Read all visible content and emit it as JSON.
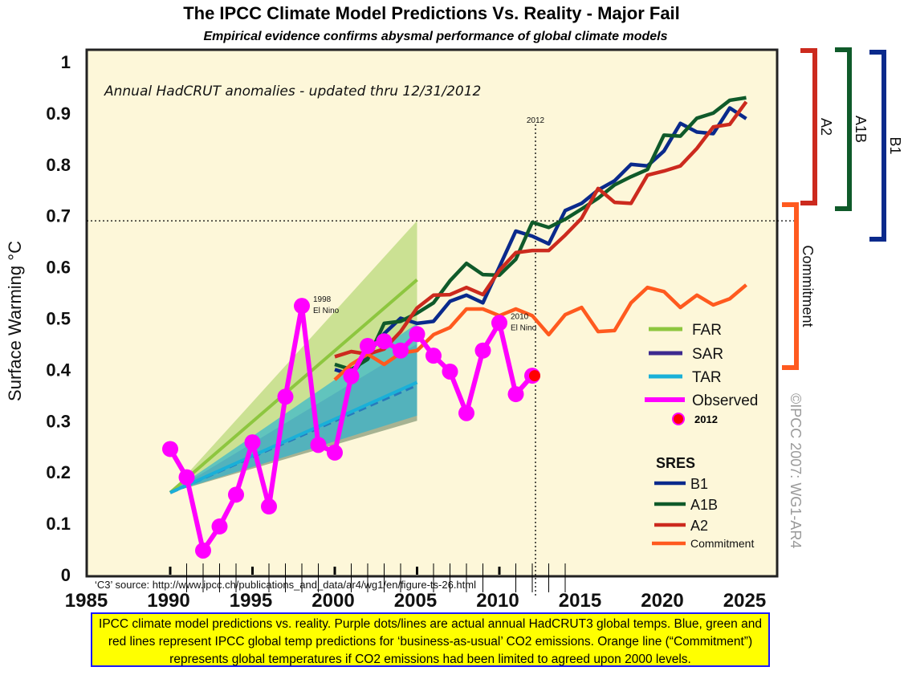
{
  "title": "The IPCC Climate Model Predictions Vs. Reality - Major Fail",
  "subtitle": "Empirical evidence confirms abysmal performance of global climate models",
  "caption": "IPCC climate model predictions vs. reality. Purple dots/lines are actual annual HadCRUT3 global temps. Blue, green and red lines represent IPCC global temp predictions for ‘business-as-usual’ CO2 emissions. Orange line (“Commitment”) represents global temperatures if CO2 emissions had been limited to agreed upon 2000 levels.",
  "chart_data": {
    "type": "line",
    "ylabel": "Surface Warming °C",
    "xlabel": "",
    "xlim": [
      1985,
      2025
    ],
    "ylim": [
      0,
      1
    ],
    "x_ticks": [
      1985,
      1990,
      1995,
      2000,
      2005,
      2010,
      2015,
      2020,
      2025
    ],
    "y_ticks": [
      0,
      0.1,
      0.2,
      0.3,
      0.4,
      0.5,
      0.6,
      0.7,
      0.8,
      0.9,
      1
    ],
    "annotation_header": "Annual HadCRUT anomalies - updated thru 12/31/2012",
    "source_note": "‘C3’ source: http://www.ipcc.ch/publications_and_data/ar4/wg1/en/figure-ts-26.html",
    "reference_lines": {
      "x": 2012,
      "x_label": "2012",
      "y": 0.69
    },
    "annotations": [
      {
        "x": 1998,
        "y": 0.524,
        "text": [
          "1998",
          "El Nino"
        ]
      },
      {
        "x": 2010,
        "y": 0.491,
        "text": [
          "2010",
          "El Nino"
        ]
      }
    ],
    "copyright": "©IPCC 2007: WG1-AR4",
    "bands": [
      {
        "name": "FAR",
        "color": "#8dc63f",
        "x": [
          1990,
          2005
        ],
        "lower": [
          0.16,
          0.3
        ],
        "upper": [
          0.16,
          0.69
        ],
        "center": [
          0.16,
          0.575
        ]
      },
      {
        "name": "SAR",
        "color": "#3d2a8f",
        "x": [
          1990,
          2005
        ],
        "lower": [
          0.16,
          0.3
        ],
        "upper": [
          0.16,
          0.45
        ],
        "center": [
          0.16,
          0.37
        ]
      },
      {
        "name": "TAR",
        "color": "#1ab0d8",
        "x": [
          1990,
          2005
        ],
        "lower": [
          0.16,
          0.31
        ],
        "upper": [
          0.16,
          0.49
        ],
        "center": [
          0.16,
          0.375
        ]
      }
    ],
    "observed": {
      "name": "Observed",
      "color": "#ff00ff",
      "x": [
        1990,
        1991,
        1992,
        1993,
        1994,
        1995,
        1996,
        1997,
        1998,
        1999,
        2000,
        2001,
        2002,
        2003,
        2004,
        2005,
        2006,
        2007,
        2008,
        2009,
        2010,
        2011,
        2012
      ],
      "y": [
        0.245,
        0.19,
        0.047,
        0.094,
        0.156,
        0.258,
        0.133,
        0.347,
        0.524,
        0.253,
        0.238,
        0.387,
        0.446,
        0.455,
        0.437,
        0.469,
        0.427,
        0.396,
        0.315,
        0.437,
        0.491,
        0.352,
        0.388
      ],
      "highlight": {
        "x": 2012,
        "y": 0.388,
        "label": "2012",
        "color": "#ff0000"
      }
    },
    "x": [
      2000,
      2001,
      2002,
      2003,
      2004,
      2005,
      2006,
      2007,
      2008,
      2009,
      2010,
      2011,
      2012,
      2013,
      2014,
      2015,
      2016,
      2017,
      2018,
      2019,
      2020,
      2021,
      2022,
      2023,
      2024,
      2025
    ],
    "series": [
      {
        "name": "B1",
        "color": "#0a2a8c",
        "values": [
          0.4,
          0.39,
          0.43,
          0.47,
          0.5,
          0.49,
          0.494,
          0.533,
          0.545,
          0.53,
          0.6,
          0.67,
          0.66,
          0.645,
          0.71,
          0.724,
          0.75,
          0.768,
          0.8,
          0.797,
          0.826,
          0.88,
          0.863,
          0.86,
          0.91,
          0.889
        ]
      },
      {
        "name": "A1B",
        "color": "#0f5a2a",
        "values": [
          0.41,
          0.4,
          0.42,
          0.49,
          0.494,
          0.51,
          0.53,
          0.573,
          0.607,
          0.585,
          0.584,
          0.615,
          0.687,
          0.677,
          0.693,
          0.713,
          0.734,
          0.76,
          0.776,
          0.79,
          0.857,
          0.855,
          0.89,
          0.9,
          0.925,
          0.93
        ]
      },
      {
        "name": "A2",
        "color": "#cc2a1e",
        "values": [
          0.425,
          0.435,
          0.43,
          0.44,
          0.474,
          0.52,
          0.545,
          0.546,
          0.56,
          0.546,
          0.593,
          0.628,
          0.632,
          0.632,
          0.662,
          0.695,
          0.753,
          0.726,
          0.724,
          0.779,
          0.787,
          0.797,
          0.831,
          0.873,
          0.878,
          0.922
        ]
      },
      {
        "name": "Commitment",
        "color": "#ff5a1f",
        "values": [
          0.38,
          0.41,
          0.43,
          0.41,
          0.432,
          0.437,
          0.468,
          0.482,
          0.518,
          0.518,
          0.505,
          0.518,
          0.505,
          0.468,
          0.507,
          0.521,
          0.474,
          0.476,
          0.53,
          0.56,
          0.552,
          0.521,
          0.545,
          0.526,
          0.538,
          0.565
        ]
      }
    ],
    "legend": {
      "placement": "right",
      "items": [
        {
          "label": "FAR",
          "color": "#8dc63f"
        },
        {
          "label": "SAR",
          "color": "#3d2a8f"
        },
        {
          "label": "TAR",
          "color": "#1ab0d8"
        },
        {
          "label": "Observed",
          "color": "#ff00ff"
        },
        {
          "label": "2012",
          "color": "#ff0000"
        }
      ],
      "sres_title": "SRES",
      "sres_items": [
        {
          "label": "B1",
          "color": "#0a2a8c"
        },
        {
          "label": "A1B",
          "color": "#0f5a2a"
        },
        {
          "label": "A2",
          "color": "#cc2a1e"
        },
        {
          "label": "Commitment",
          "color": "#ff5a1f"
        }
      ]
    },
    "range_brackets": [
      {
        "label": "A2",
        "color": "#cc2a1e"
      },
      {
        "label": "A1B",
        "color": "#0f5a2a"
      },
      {
        "label": "B1",
        "color": "#0a2a8c"
      },
      {
        "label": "Commitment",
        "color": "#ff5a1f"
      }
    ],
    "grid": false
  }
}
